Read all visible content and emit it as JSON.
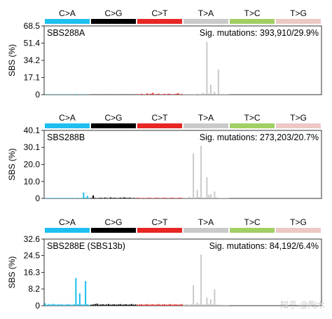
{
  "categories": [
    "C>A",
    "C>G",
    "C>T",
    "T>A",
    "T>C",
    "T>G"
  ],
  "category_colors": [
    "#1EBFF0",
    "#000000",
    "#E62725",
    "#CBCACB",
    "#A1CF64",
    "#EDC8C5"
  ],
  "watermark": "知乎 @陶木",
  "chart_data": [
    {
      "type": "bar",
      "name": "SBS288A",
      "info": "Sig. mutations: 393,910/29.9%",
      "ylabel": "SBS (%)",
      "ylim": [
        0,
        68.5
      ],
      "yticks": [
        "0",
        "17.1",
        "34.2",
        "51.4",
        "68.5"
      ],
      "values": [
        0.3,
        0.2,
        0.4,
        0.3,
        0.2,
        0.3,
        0.2,
        0.4,
        0.3,
        0.2,
        0.3,
        0.4,
        0.2,
        0.3,
        0.2,
        0.3,
        0.6,
        0.3,
        0.2,
        0.3,
        0.2,
        0.4,
        0.3,
        0.2,
        0.1,
        0.1,
        0.1,
        0.1,
        0.1,
        0.1,
        0.1,
        0.1,
        0.1,
        0.1,
        0.1,
        0.1,
        0.1,
        0.1,
        0.1,
        0.1,
        0.1,
        0.1,
        0.1,
        0.1,
        0.1,
        0.1,
        0.1,
        0.1,
        0.5,
        0.3,
        0.8,
        0.4,
        0.3,
        1.2,
        0.5,
        0.9,
        1.8,
        0.4,
        0.6,
        1.0,
        0.3,
        0.5,
        0.8,
        0.4,
        1.0,
        0.6,
        0.3,
        0.5,
        0.8,
        1.5,
        0.5,
        0.6,
        0.5,
        0.4,
        0.6,
        0.3,
        0.5,
        0.4,
        0.3,
        1.0,
        0.5,
        0.3,
        2.0,
        0.8,
        52.5,
        1.0,
        10.0,
        0.8,
        3.0,
        0.5,
        25.0,
        0.5,
        0.8,
        0.4,
        0.5,
        0.6,
        0,
        0,
        0,
        0,
        0,
        0,
        0,
        0,
        0,
        0,
        0,
        0,
        0,
        0,
        0,
        0,
        0,
        0,
        0,
        0,
        0,
        0,
        0,
        0,
        0,
        0,
        0,
        0,
        0,
        0,
        0,
        0,
        0,
        0,
        0,
        0,
        0,
        0,
        0,
        0,
        0,
        0,
        0,
        0,
        0,
        0,
        0,
        0
      ]
    },
    {
      "type": "bar",
      "name": "SBS288B",
      "info": "Sig. mutations: 273,203/20.7%",
      "ylabel": "SBS (%)",
      "ylim": [
        0,
        40.1
      ],
      "yticks": [
        "0",
        "10.0",
        "20.0",
        "30.1",
        "40.1"
      ],
      "values": [
        0.3,
        0.2,
        0.3,
        0.2,
        0.3,
        0.2,
        0.3,
        0.2,
        0.3,
        0.2,
        0.3,
        0.2,
        0.3,
        0.2,
        0.3,
        0.2,
        0.2,
        0.3,
        0.2,
        0.3,
        3.5,
        0.5,
        1.5,
        0.3,
        0.3,
        1.8,
        0.3,
        0.2,
        0.3,
        0.4,
        0.2,
        0.5,
        0.3,
        0.2,
        0.6,
        0.3,
        0.4,
        0.3,
        0.2,
        0.5,
        0.3,
        0.6,
        0.4,
        0.3,
        0.5,
        0.2,
        0.3,
        0.2,
        0.4,
        0.3,
        0.2,
        0.3,
        0.2,
        0.3,
        0.4,
        0.3,
        0.2,
        0.3,
        0.4,
        0.3,
        0.2,
        0.3,
        0.4,
        0.3,
        0.2,
        0.3,
        0.4,
        0.3,
        0.2,
        0.3,
        0.4,
        0.3,
        0.4,
        0.3,
        0.5,
        1.0,
        0.4,
        26.5,
        0.5,
        5.0,
        0.8,
        31.0,
        0.6,
        0.5,
        12.5,
        2.0,
        2.5,
        0.5,
        4.0,
        0.6,
        0.3,
        0.2,
        0.3,
        0.2,
        0.3,
        0.2,
        0,
        0,
        0,
        0,
        0,
        0,
        0,
        0,
        0,
        0,
        0,
        0,
        0,
        0,
        0,
        0,
        0,
        0,
        0,
        0,
        0,
        0,
        0,
        0,
        0,
        0,
        0,
        0,
        0,
        0,
        0,
        0,
        0,
        0,
        0,
        0,
        0,
        0,
        0,
        0,
        0,
        0,
        0,
        0,
        0,
        0,
        0,
        0
      ]
    },
    {
      "type": "bar",
      "name": "SBS288E (SBS13b)",
      "info": "Sig. mutations: 84,192/6.4%",
      "ylabel": "SBS (%)",
      "ylim": [
        0,
        32.6
      ],
      "yticks": [
        "0",
        "8.2",
        "16.3",
        "24.5",
        "32.6"
      ],
      "values": [
        1.2,
        0.5,
        0.8,
        0.6,
        0.9,
        0.7,
        0.5,
        0.8,
        0.6,
        0.7,
        0.5,
        0.6,
        0.8,
        0.6,
        0.5,
        0.7,
        13.5,
        0.8,
        6.0,
        0.7,
        0.6,
        12.0,
        0.7,
        0.5,
        0.5,
        0.6,
        0.8,
        1.0,
        0.5,
        0.6,
        0.7,
        0.5,
        0.6,
        0.8,
        0.5,
        0.6,
        0.7,
        0.5,
        0.6,
        0.8,
        0.5,
        0.6,
        0.7,
        0.5,
        0.6,
        0.8,
        0.5,
        0.6,
        0.5,
        0.6,
        0.7,
        0.5,
        0.6,
        0.8,
        0.5,
        0.6,
        0.7,
        0.5,
        0.6,
        0.8,
        0.5,
        0.6,
        0.7,
        0.5,
        0.6,
        0.8,
        0.5,
        0.6,
        0.7,
        0.5,
        0.6,
        0.8,
        0.6,
        0.8,
        0.7,
        0.5,
        0.8,
        10.0,
        0.6,
        1.5,
        0.7,
        25.0,
        0.7,
        0.5,
        4.0,
        0.8,
        3.0,
        0.6,
        8.0,
        0.5,
        0.6,
        0.4,
        0.5,
        0.3,
        0.4,
        0.3,
        0,
        0,
        0,
        0,
        0,
        0,
        0,
        0,
        0,
        0,
        0,
        0,
        0,
        0,
        0,
        0,
        0,
        0,
        0,
        0,
        0,
        0,
        0,
        0,
        0,
        0,
        0,
        0,
        0,
        0,
        0,
        0,
        0,
        0,
        0,
        0,
        0,
        0,
        0,
        0,
        0,
        0,
        0,
        0,
        0,
        0,
        0,
        0
      ]
    }
  ]
}
